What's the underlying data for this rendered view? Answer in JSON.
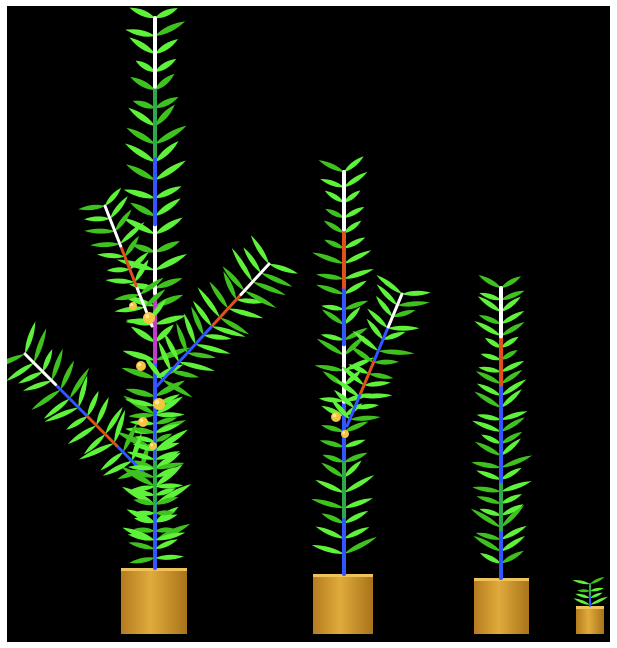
{
  "scene": {
    "background": "#000000",
    "frame_color": "#ffffff",
    "leaf_color": "#5ef23a",
    "leaf_dark_color": "#3fc21f",
    "pot_color": "#d7a032",
    "pot_shadow_color": "#b07a1c",
    "fruit_color": "#f5c542",
    "stem_segment_colors": [
      "#3355ff",
      "#e0501e",
      "#c03cc8",
      "#ffffff",
      "#2ea84a"
    ],
    "plant_count": 4,
    "plants": [
      {
        "id": "plant-1",
        "growth_stage": "mature",
        "fruit_count": 6
      },
      {
        "id": "plant-2",
        "growth_stage": "flowering",
        "fruit_count": 2
      },
      {
        "id": "plant-3",
        "growth_stage": "vegetative",
        "fruit_count": 0
      },
      {
        "id": "plant-4",
        "growth_stage": "seedling",
        "fruit_count": 0
      }
    ]
  }
}
